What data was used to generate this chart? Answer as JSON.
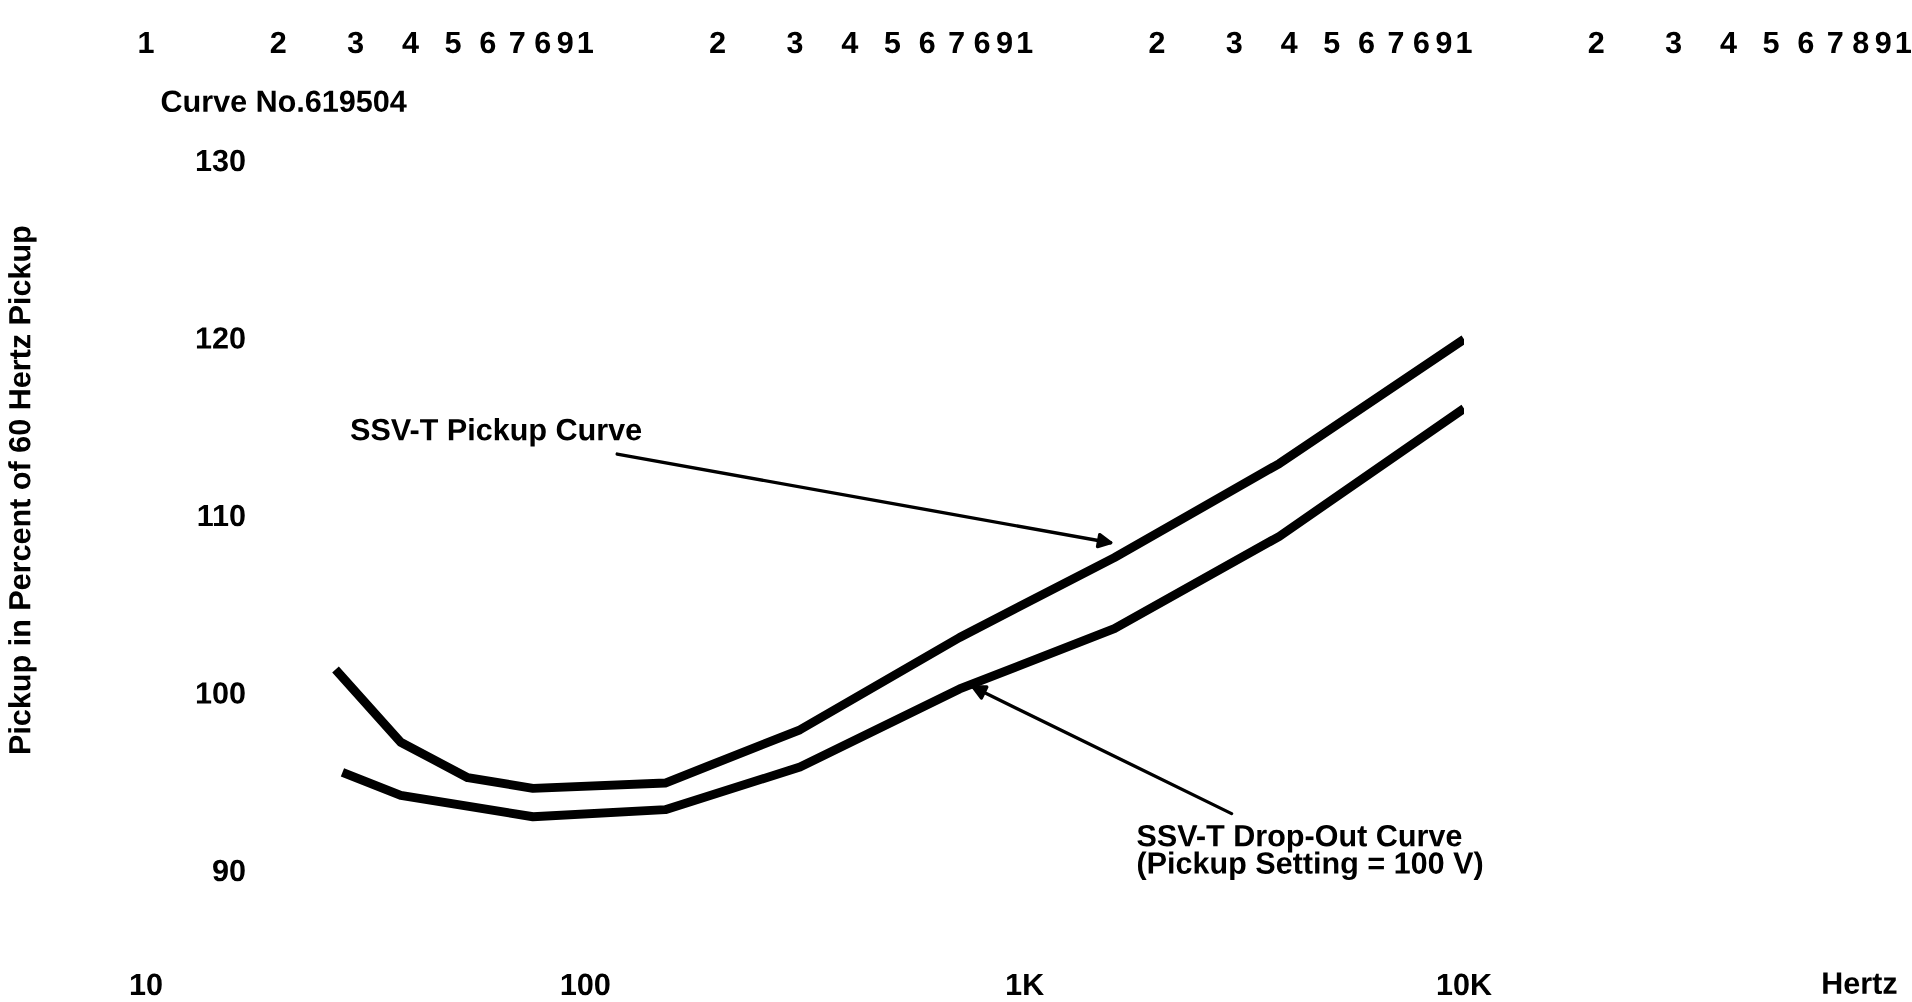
{
  "chart_data": {
    "type": "line",
    "ylabel": "Pickup in Percent of 60 Hertz Pickup",
    "log": "x",
    "xlim": [
      10,
      10000
    ],
    "ylim": [
      90,
      130
    ],
    "xticks": [
      10,
      100,
      {
        "value": 1000,
        "label": "1K"
      },
      {
        "value": 10000,
        "label": "10K"
      }
    ],
    "yticks": [
      90,
      100,
      110,
      120,
      130
    ],
    "series": [
      {
        "color": "#000000",
        "x": [
          27,
          38,
          54,
          76,
          152,
          308,
          711,
          1600,
          3800,
          10000
        ],
        "values": [
          101.3,
          97.2,
          95.2,
          94.6,
          94.9,
          97.9,
          103.1,
          107.6,
          112.9,
          119.9
        ]
      },
      {
        "color": "#000000",
        "x": [
          28,
          38,
          76,
          152,
          308,
          711,
          1600,
          3800,
          10000
        ],
        "values": [
          95.5,
          94.2,
          93.0,
          93.4,
          95.8,
          100.2,
          103.6,
          108.8,
          116.0
        ]
      }
    ],
    "annotations": [
      "Curve No.619504",
      {
        "text": "SSV-T Pickup Curve",
        "x": 1600,
        "y": 108.4
      },
      {
        "text": "SSV-T Drop-Out Curve\n(Pickup Setting = 100 V)",
        "x": 750,
        "y": 100.4
      },
      "1 2 3 4 5 6 7 6 9 1",
      "2 3 4 5 6 7 6 9 1",
      "2 3 4 5 6 7 6 9 1",
      "2 3 4 5 6 7 8 9 1",
      "Hertz"
    ],
    "grid": false,
    "legend": false
  }
}
